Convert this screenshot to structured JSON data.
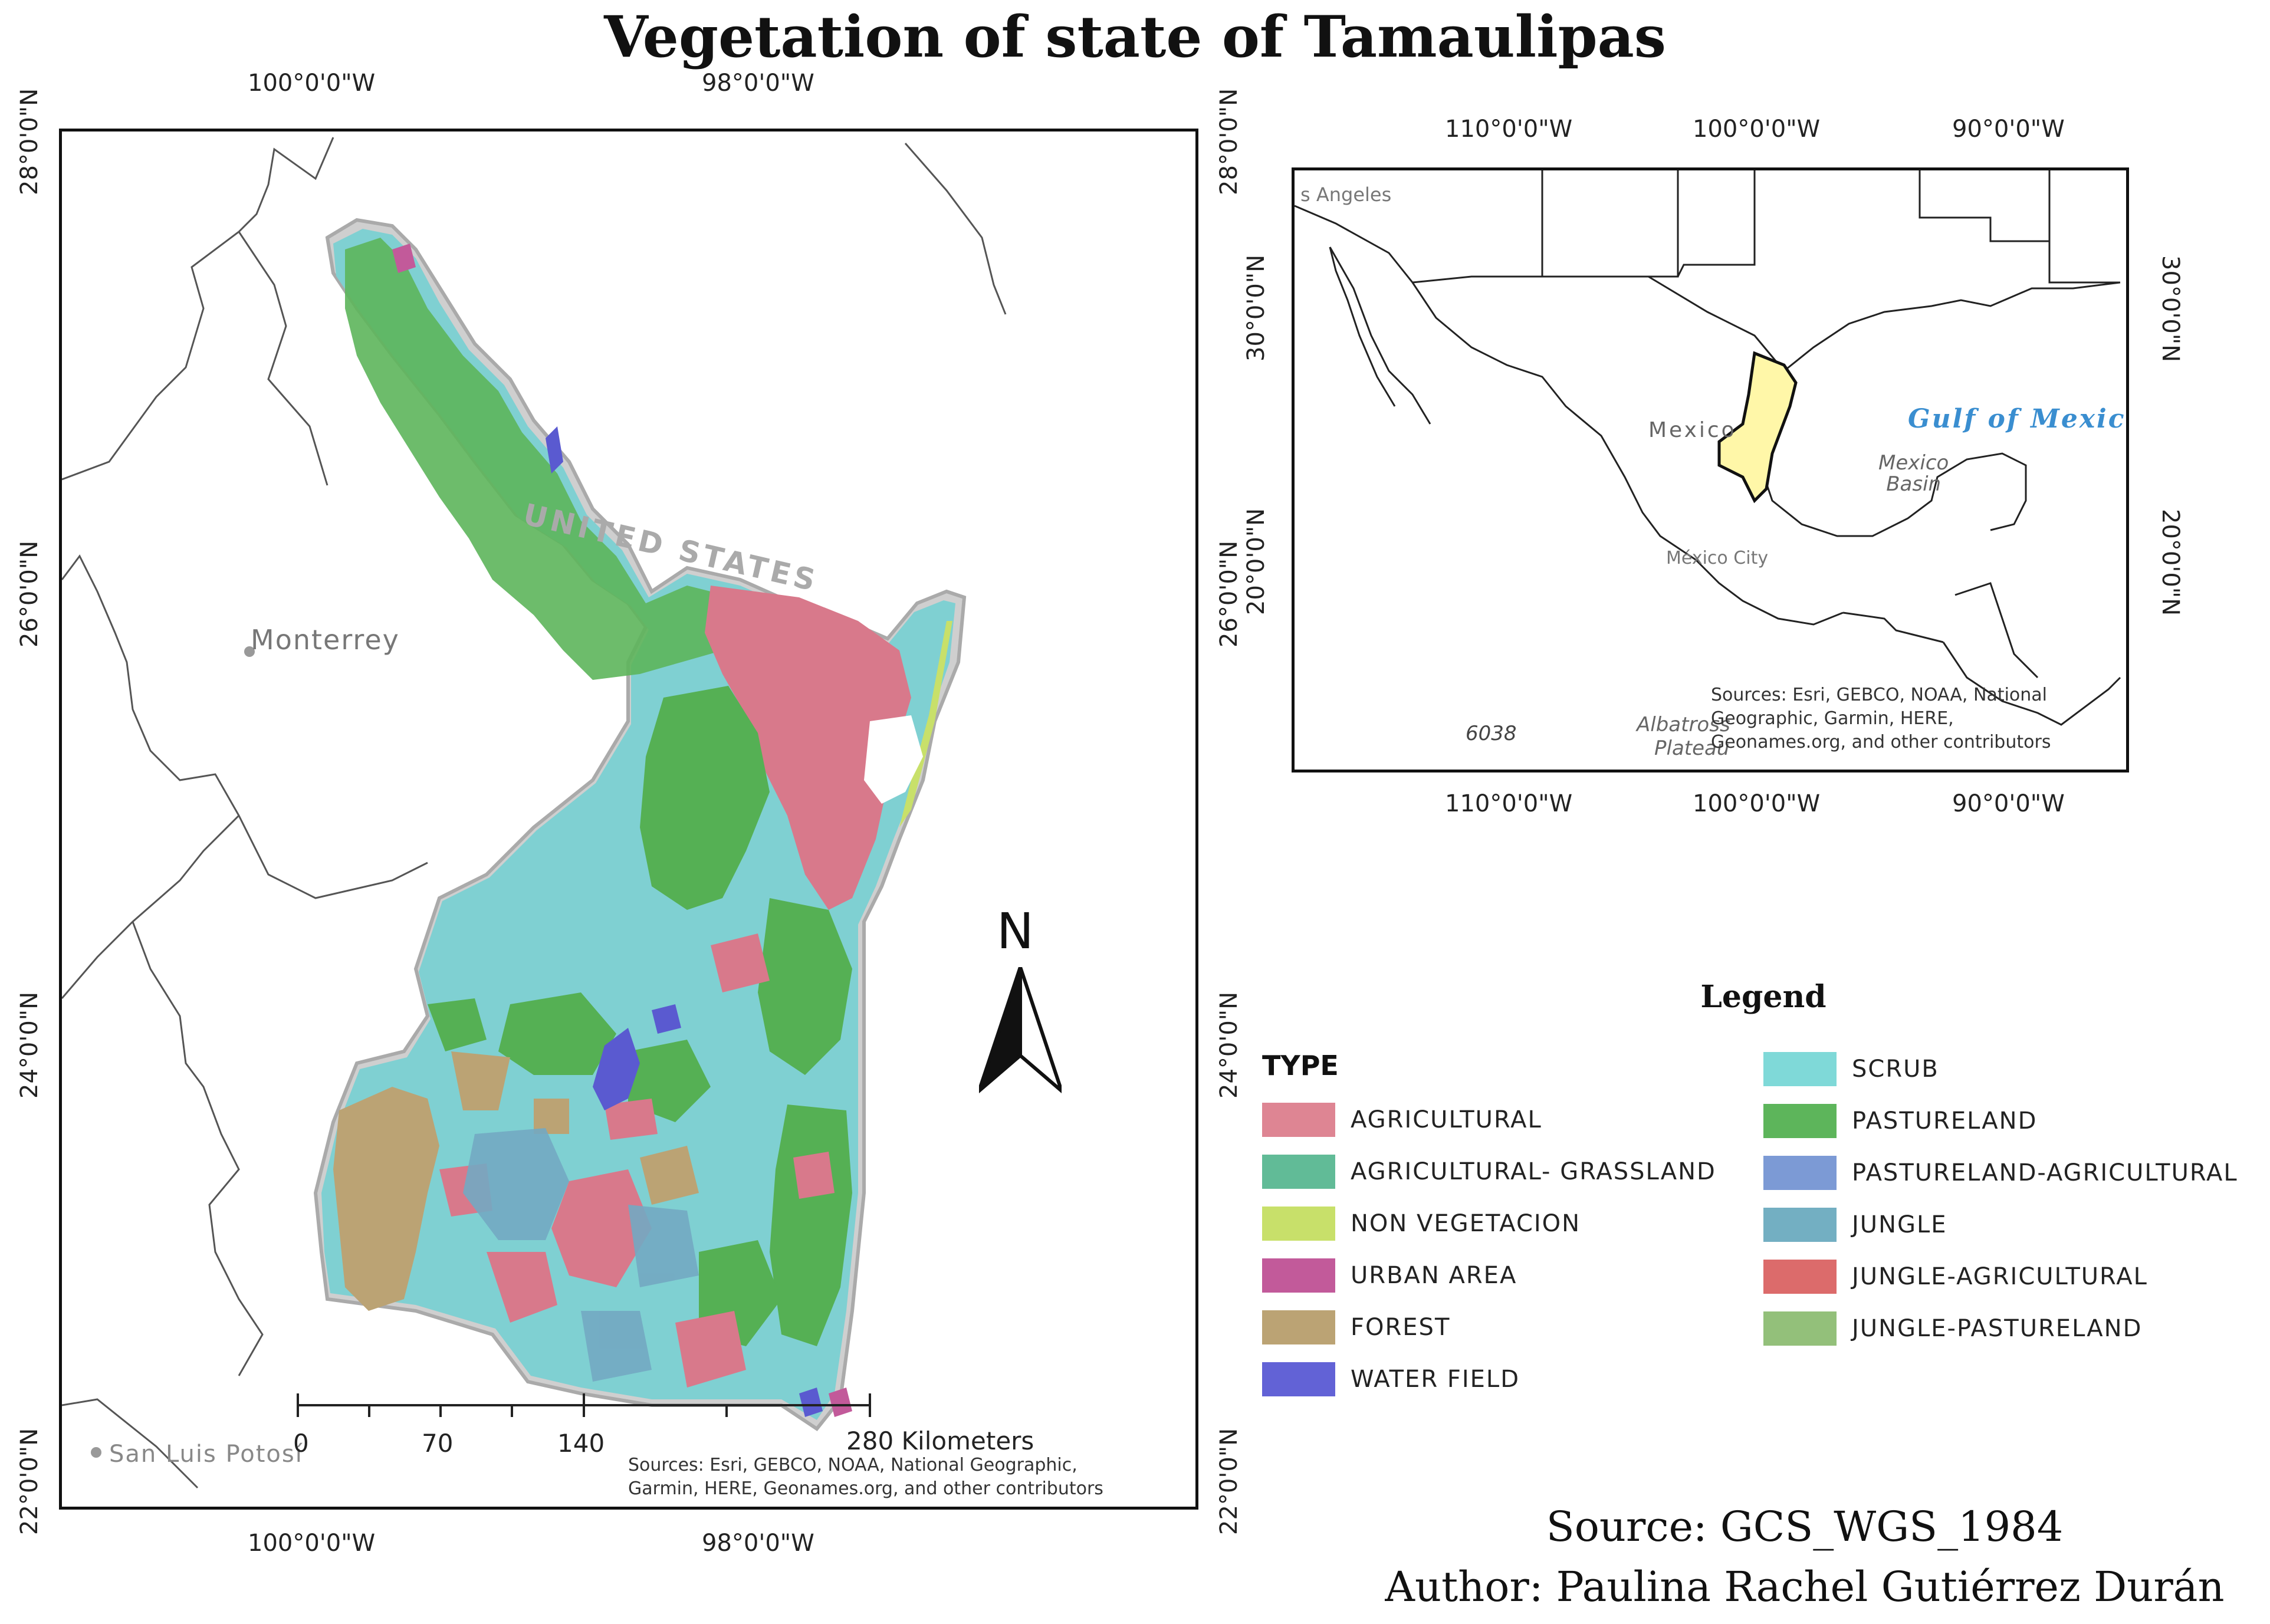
{
  "title": "Vegetation of state of Tamaulipas",
  "main_map": {
    "top_ticks": [
      "100°0'0\"W",
      "98°0'0\"W"
    ],
    "bottom_ticks": [
      "100°0'0\"W",
      "98°0'0\"W"
    ],
    "left_ticks": [
      "28°0'0\"N",
      "26°0'0\"N",
      "24°0'0\"N",
      "22°0'0\"N"
    ],
    "right_ticks": [
      "28°0'0\"N",
      "26°0'0\"N",
      "24°0'0\"N",
      "22°0'0\"N"
    ],
    "places": {
      "monterrey": "Monterrey",
      "san_luis_potosi": "San Luis Potosí",
      "united_states": "UNITED STATES"
    },
    "scale_bar": {
      "labels": [
        "0",
        "70",
        "140",
        "280 Kilometers"
      ]
    },
    "credits": [
      "Sources: Esri, GEBCO, NOAA, National Geographic,",
      "Garmin, HERE, Geonames.org, and other contributors"
    ],
    "north_label": "N"
  },
  "inset_map": {
    "top_ticks": [
      "110°0'0\"W",
      "100°0'0\"W",
      "90°0'0\"W"
    ],
    "bottom_ticks": [
      "110°0'0\"W",
      "100°0'0\"W",
      "90°0'0\"W"
    ],
    "left_ticks": [
      "30°0'0\"N",
      "20°0'0\"N"
    ],
    "right_ticks": [
      "30°0'0\"N",
      "20°0'0\"N"
    ],
    "places": {
      "los_angeles": "s Angeles",
      "mexico": "Mexico",
      "gulf": "Gulf of Mexico",
      "basin": [
        "Mexico",
        "Basin"
      ],
      "mexico_city": "México City",
      "depth": "6038",
      "plateau": [
        "Albatross",
        "Plateau"
      ]
    },
    "credits": [
      "Sources: Esri, GEBCO, NOAA, National",
      "Geographic, Garmin, HERE,",
      "Geonames.org, and other contributors"
    ]
  },
  "legend": {
    "title": "Legend",
    "type_header": "TYPE",
    "left_items": [
      {
        "label": "AGRICULTURAL",
        "color": "#de8593"
      },
      {
        "label": "AGRICULTURAL- GRASSLAND",
        "color": "#61bb97"
      },
      {
        "label": "NON VEGETACION",
        "color": "#c8e06a"
      },
      {
        "label": "URBAN AREA",
        "color": "#c25a9a"
      },
      {
        "label": "FOREST",
        "color": "#bba374"
      },
      {
        "label": "WATER FIELD",
        "color": "#6262d6"
      }
    ],
    "right_items": [
      {
        "label": "SCRUB",
        "color": "#7fd9d8"
      },
      {
        "label": "PASTURELAND",
        "color": "#5db55b"
      },
      {
        "label": "PASTURELAND-AGRICULTURAL",
        "color": "#7c9ad5"
      },
      {
        "label": "JUNGLE",
        "color": "#73afc2"
      },
      {
        "label": "JUNGLE-AGRICULTURAL",
        "color": "#dc6b6b"
      },
      {
        "label": "JUNGLE-PASTURELAND",
        "color": "#93c07a"
      }
    ]
  },
  "source": "Source: GCS_WGS_1984",
  "author": "Author: Paulina Rachel Gutiérrez Durán"
}
